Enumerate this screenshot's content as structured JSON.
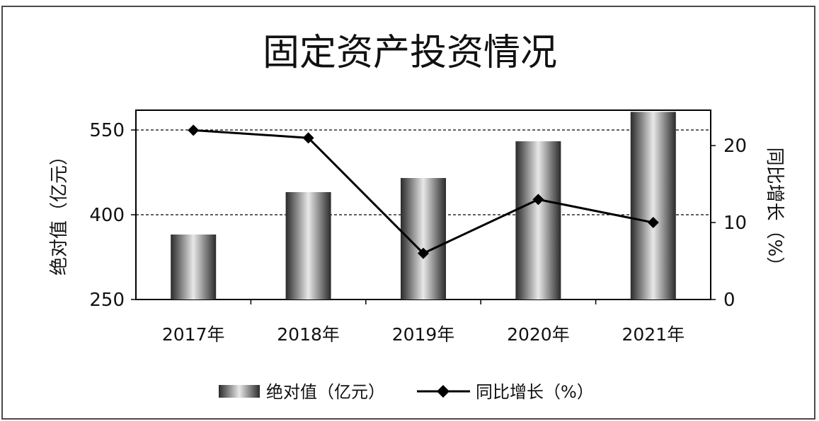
{
  "chart_data": {
    "type": "bar",
    "title": "固定资产投资情况",
    "categories": [
      "2017年",
      "2018年",
      "2019年",
      "2020年",
      "2021年"
    ],
    "series": [
      {
        "name": "绝对值（亿元）",
        "type": "bar",
        "axis": "left",
        "values": [
          365,
          440,
          465,
          530,
          582
        ]
      },
      {
        "name": "同比增长（%）",
        "type": "line",
        "axis": "right",
        "marker": "diamond",
        "values": [
          22,
          21,
          6,
          13,
          10
        ]
      }
    ],
    "ylabel": "绝对值（亿元）",
    "y2label": "同比增长（%）",
    "ylim": [
      250,
      585
    ],
    "y2lim": [
      0,
      24.6
    ],
    "yticks": [
      "250",
      "400",
      "550"
    ],
    "y2ticks": [
      "0",
      "10",
      "20"
    ],
    "gridlines": "dashed at 400 and 550",
    "legend": "bottom",
    "colors": {
      "line": "#000000",
      "bar_dark": "#1a1a1a",
      "bar_light": "#e8e8e8"
    }
  }
}
